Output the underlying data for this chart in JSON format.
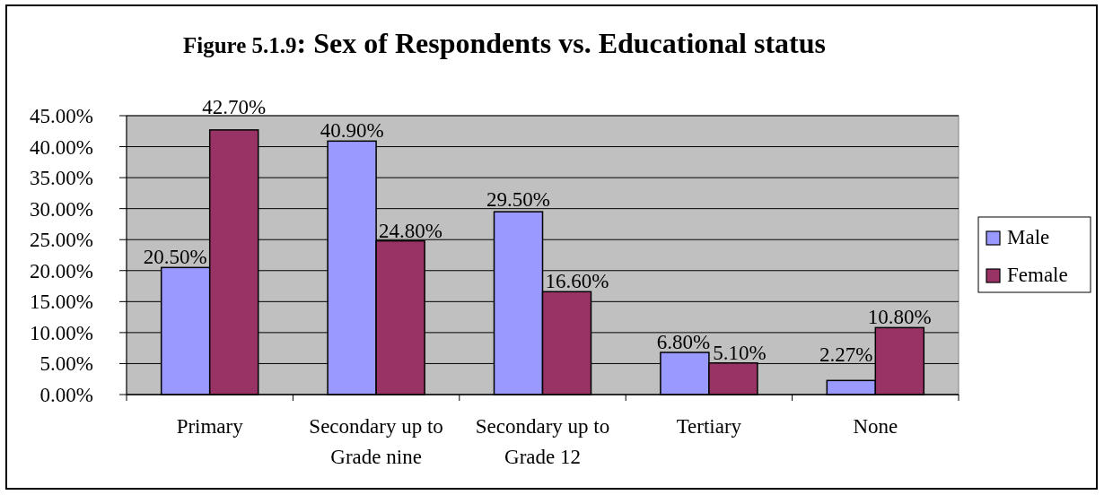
{
  "chart_data": {
    "type": "bar",
    "title": "Figure 5.1.9: Sex of Respondents vs. Educational status",
    "categories": [
      "Primary",
      "Secondary up to Grade nine",
      "Secondary up to Grade 12",
      "Tertiary",
      "None"
    ],
    "series": [
      {
        "name": "Male",
        "color": "#9999ff",
        "values": [
          20.5,
          40.9,
          29.5,
          6.8,
          2.27
        ],
        "value_labels": [
          "20.50%",
          "40.90%",
          "29.50%",
          "6.80%",
          "2.27%"
        ]
      },
      {
        "name": "Female",
        "color": "#993366",
        "values": [
          42.7,
          24.8,
          16.6,
          5.1,
          10.8
        ],
        "value_labels": [
          "42.70%",
          "24.80%",
          "16.60%",
          "5.10%",
          "10.80%"
        ]
      }
    ],
    "ylim": [
      0,
      45
    ],
    "yticks": [
      {
        "value": 0,
        "label": "0.00%"
      },
      {
        "value": 5,
        "label": "5.00%"
      },
      {
        "value": 10,
        "label": "10.00%"
      },
      {
        "value": 15,
        "label": "15.00%"
      },
      {
        "value": 20,
        "label": "20.00%"
      },
      {
        "value": 25,
        "label": "25.00%"
      },
      {
        "value": 30,
        "label": "30.00%"
      },
      {
        "value": 35,
        "label": "35.00%"
      },
      {
        "value": 40,
        "label": "40.00%"
      },
      {
        "value": 45,
        "label": "45.00%"
      }
    ],
    "grid": "y",
    "legend": "right"
  }
}
